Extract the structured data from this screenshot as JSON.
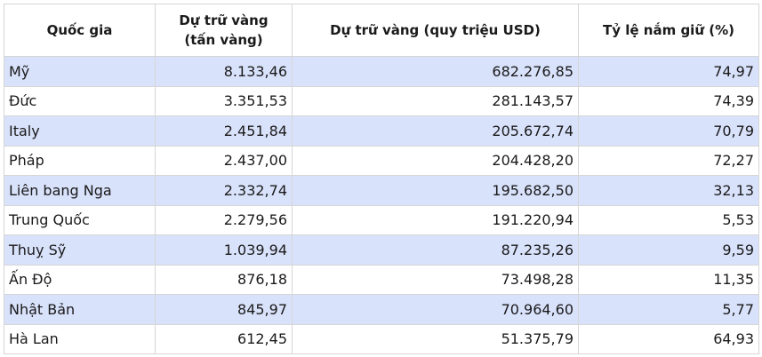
{
  "headers": {
    "country": "Quốc gia",
    "reserves_tons_line1": "Dự trữ vàng",
    "reserves_tons_line2": "(tấn vàng)",
    "reserves_usd": "Dự trữ vàng (quy triệu USD)",
    "holding_ratio": "Tỷ lệ nắm giữ (%)"
  },
  "rows": [
    {
      "country": "Mỹ",
      "tons": "8.133,46",
      "usd": "682.276,85",
      "ratio": "74,97"
    },
    {
      "country": "Đức",
      "tons": "3.351,53",
      "usd": "281.143,57",
      "ratio": "74,39"
    },
    {
      "country": "Italy",
      "tons": "2.451,84",
      "usd": "205.672,74",
      "ratio": "70,79"
    },
    {
      "country": "Pháp",
      "tons": "2.437,00",
      "usd": "204.428,20",
      "ratio": "72,27"
    },
    {
      "country": "Liên bang Nga",
      "tons": "2.332,74",
      "usd": "195.682,50",
      "ratio": "32,13"
    },
    {
      "country": "Trung Quốc",
      "tons": "2.279,56",
      "usd": "191.220,94",
      "ratio": "5,53"
    },
    {
      "country": "Thuỵ Sỹ",
      "tons": "1.039,94",
      "usd": "87.235,26",
      "ratio": "9,59"
    },
    {
      "country": "Ấn Độ",
      "tons": "876,18",
      "usd": "73.498,28",
      "ratio": "11,35"
    },
    {
      "country": "Nhật Bản",
      "tons": "845,97",
      "usd": "70.964,60",
      "ratio": "5,77"
    },
    {
      "country": "Hà Lan",
      "tons": "612,45",
      "usd": "51.375,79",
      "ratio": "64,93"
    }
  ],
  "colors": {
    "row_stripe": "#d9e2fb",
    "border": "#d6d6d6"
  }
}
